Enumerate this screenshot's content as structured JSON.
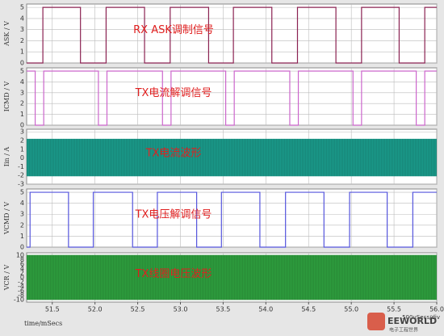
{
  "chart_data": [
    {
      "type": "step",
      "ylabel": "ASK / V",
      "title": "RX ASK调制信号",
      "xlim": [
        51.2,
        56.0
      ],
      "ylim": [
        0,
        5.3
      ],
      "yticks": [
        0,
        1,
        2,
        3,
        4,
        5
      ],
      "series": [
        {
          "color": "#8b2252",
          "x": [
            51.2,
            51.39,
            51.39,
            51.83,
            51.83,
            52.13,
            52.13,
            52.58,
            52.58,
            52.88,
            52.88,
            53.33,
            53.33,
            53.62,
            53.62,
            54.07,
            54.07,
            54.37,
            54.37,
            54.82,
            54.82,
            55.12,
            55.12,
            55.56,
            55.56,
            55.86,
            55.86,
            56.0
          ],
          "values": [
            0,
            0,
            5,
            5,
            0,
            0,
            5,
            5,
            0,
            0,
            5,
            5,
            0,
            0,
            5,
            5,
            0,
            0,
            5,
            5,
            0,
            0,
            5,
            5,
            0,
            0,
            5,
            5
          ]
        }
      ]
    },
    {
      "type": "step",
      "ylabel": "ICMD / V",
      "title": "TX电流解调信号",
      "xlim": [
        51.2,
        56.0
      ],
      "ylim": [
        0,
        5.3
      ],
      "yticks": [
        0,
        1,
        2,
        3,
        4,
        5
      ],
      "series": [
        {
          "color": "#cc66cc",
          "x": [
            51.2,
            51.3,
            51.3,
            51.4,
            51.4,
            52.04,
            52.04,
            52.14,
            52.14,
            52.79,
            52.79,
            52.89,
            52.89,
            53.53,
            53.53,
            53.63,
            53.63,
            54.28,
            54.28,
            54.38,
            54.38,
            55.02,
            55.02,
            55.12,
            55.12,
            55.76,
            55.76,
            55.86,
            55.86,
            56.0
          ],
          "values": [
            5,
            5,
            0,
            0,
            5,
            5,
            0,
            0,
            5,
            5,
            0,
            0,
            5,
            5,
            0,
            0,
            5,
            5,
            0,
            0,
            5,
            5,
            0,
            0,
            5,
            5,
            0,
            0,
            5,
            5
          ]
        }
      ]
    },
    {
      "type": "band",
      "ylabel": "Iin / A",
      "title": "TX电流波形",
      "xlim": [
        51.2,
        56.0
      ],
      "ylim": [
        -3,
        3.3
      ],
      "yticks": [
        -3,
        -2,
        -1,
        0,
        1,
        2,
        3
      ],
      "series": [
        {
          "color": "#1a9a8a",
          "x": [
            51.2,
            56.0
          ],
          "low": [
            -2.1,
            -2.1
          ],
          "high": [
            2.2,
            2.2
          ]
        }
      ]
    },
    {
      "type": "step",
      "ylabel": "VCMD / V",
      "title": "TX电压解调信号",
      "xlim": [
        51.2,
        56.0
      ],
      "ylim": [
        0,
        5.3
      ],
      "yticks": [
        0,
        1,
        2,
        3,
        4,
        5
      ],
      "series": [
        {
          "color": "#5555dd",
          "x": [
            51.2,
            51.24,
            51.24,
            51.69,
            51.69,
            51.98,
            51.98,
            52.44,
            52.44,
            52.73,
            52.73,
            53.19,
            53.19,
            53.48,
            53.48,
            53.93,
            53.93,
            54.23,
            54.23,
            54.68,
            54.68,
            54.98,
            54.98,
            55.42,
            55.42,
            55.72,
            55.72,
            56.0
          ],
          "values": [
            0,
            0,
            5,
            5,
            0,
            0,
            5,
            5,
            0,
            0,
            5,
            5,
            0,
            0,
            5,
            5,
            0,
            0,
            5,
            5,
            0,
            0,
            5,
            5,
            0,
            0,
            5,
            5
          ]
        }
      ]
    },
    {
      "type": "band",
      "ylabel": "VCR / V",
      "title": "TX线圈电压波形",
      "xlim": [
        51.2,
        56.0
      ],
      "ylim": [
        -11,
        11
      ],
      "yticks": [
        -10,
        -8,
        -6,
        -4,
        -2,
        0,
        2,
        4,
        6,
        8,
        10
      ],
      "xlabel": "time/mSecs",
      "annotation": "500uSecs/div",
      "logo": "EEWORLD",
      "logo_sub": "电子工程世界",
      "xticks": [
        {
          "value": 51.5,
          "label": "51.5"
        },
        {
          "value": 52,
          "label": "52.0"
        },
        {
          "value": 52.5,
          "label": "52.5"
        },
        {
          "value": 53,
          "label": "53.0"
        },
        {
          "value": 53.5,
          "label": "53.5"
        },
        {
          "value": 54,
          "label": "54.0"
        },
        {
          "value": 54.5,
          "label": "54.5"
        },
        {
          "value": 55,
          "label": "55.0"
        },
        {
          "value": 55.5,
          "label": "55.5"
        },
        {
          "value": 56,
          "label": "56.0"
        }
      ],
      "series": [
        {
          "color": "#2e9e3e",
          "x": [
            51.2,
            56.0
          ],
          "low": [
            -10,
            -10
          ],
          "high": [
            10,
            10
          ]
        }
      ]
    }
  ]
}
